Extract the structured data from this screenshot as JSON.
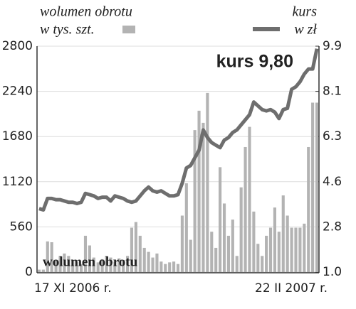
{
  "chart_data": {
    "type": "bar-line",
    "categories": [
      "17 XI 2006 r.",
      null,
      null,
      null,
      null,
      null,
      null,
      null,
      null,
      null,
      null,
      null,
      null,
      null,
      null,
      null,
      null,
      null,
      null,
      null,
      null,
      null,
      null,
      null,
      null,
      null,
      null,
      null,
      null,
      null,
      null,
      null,
      null,
      null,
      null,
      null,
      null,
      null,
      null,
      null,
      null,
      null,
      null,
      null,
      null,
      null,
      null,
      null,
      null,
      null,
      null,
      null,
      null,
      null,
      null,
      null,
      null,
      null,
      null,
      null,
      null,
      null,
      null,
      null,
      null,
      null,
      "22 II 2007 r."
    ],
    "series": [
      {
        "name": "wolumen obrotu",
        "unit": "w tys. szt.",
        "color": "#b3b3b3",
        "axis": "y",
        "values": [
          30,
          30,
          380,
          370,
          150,
          200,
          230,
          200,
          150,
          130,
          100,
          450,
          330,
          180,
          120,
          160,
          200,
          180,
          130,
          170,
          150,
          200,
          550,
          620,
          450,
          300,
          250,
          180,
          230,
          130,
          100,
          120,
          130,
          100,
          700,
          1100,
          400,
          1760,
          2000,
          1850,
          2220,
          500,
          300,
          1300,
          850,
          450,
          650,
          200,
          1050,
          1550,
          1800,
          750,
          350,
          200,
          450,
          550,
          800,
          500,
          950,
          700,
          550,
          550,
          550,
          600,
          1550,
          2100,
          2100
        ]
      },
      {
        "name": "kurs",
        "unit": "w zł",
        "color": "#6e6e6e",
        "axis": "y2",
        "values": [
          3.5,
          3.45,
          3.9,
          3.9,
          3.85,
          3.85,
          3.8,
          3.75,
          3.75,
          3.7,
          3.75,
          4.1,
          4.05,
          4.0,
          3.9,
          3.95,
          3.95,
          3.8,
          4.0,
          3.95,
          3.9,
          3.8,
          3.75,
          3.8,
          4.0,
          4.2,
          4.35,
          4.2,
          4.15,
          4.2,
          4.1,
          4.0,
          4.0,
          4.05,
          4.5,
          5.1,
          5.2,
          5.5,
          5.8,
          6.6,
          6.3,
          6.1,
          6.0,
          5.9,
          6.2,
          6.3,
          6.5,
          6.6,
          6.8,
          7.0,
          7.2,
          7.7,
          7.55,
          7.4,
          7.35,
          7.4,
          7.3,
          7.05,
          7.4,
          7.45,
          8.2,
          8.3,
          8.5,
          8.8,
          9.0,
          9.0,
          9.8
        ]
      }
    ],
    "ylim": [
      0,
      2800
    ],
    "yticks": [
      0,
      560,
      1120,
      1680,
      2240,
      2800
    ],
    "y2lim": [
      1,
      9.9
    ],
    "y2ticks": [
      {
        "value": 1,
        "label": "1.0"
      },
      {
        "value": 2.78,
        "label": "2.8"
      },
      {
        "value": 4.56,
        "label": "4.6"
      },
      {
        "value": 6.34,
        "label": "6.3"
      },
      {
        "value": 8.12,
        "label": "8.1"
      },
      {
        "value": 9.9,
        "label": "9.9"
      }
    ],
    "grid": true,
    "annotations": [
      "kurs 9,80",
      "wolumen obrotu"
    ]
  }
}
